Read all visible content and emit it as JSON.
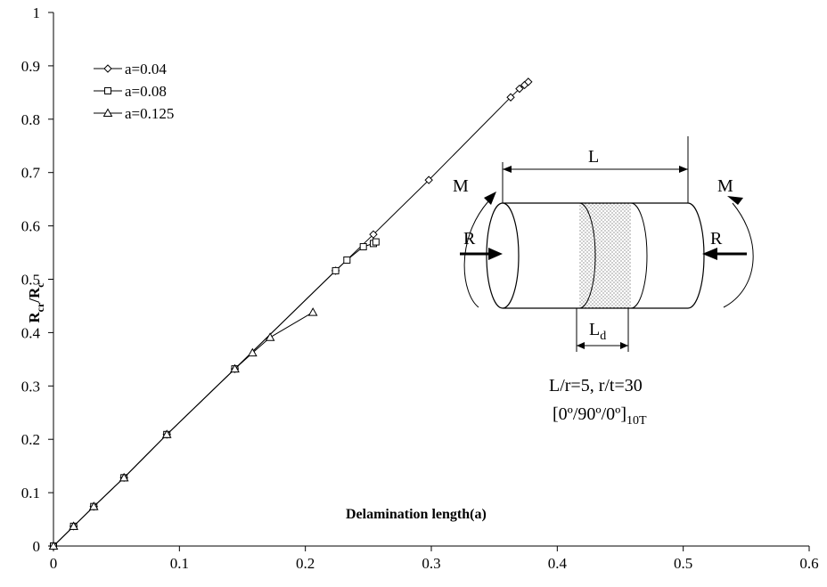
{
  "chart_data": {
    "type": "line",
    "title": "",
    "xlabel": "Delamination length(a)",
    "ylabel": {
      "main": "R",
      "sub1": "cr",
      "sep": "/R",
      "sub2": "c"
    },
    "xlim": [
      0,
      0.6
    ],
    "ylim": [
      0,
      1
    ],
    "xticks": [
      "0",
      "0.1",
      "0.2",
      "0.3",
      "0.4",
      "0.5",
      "0.6"
    ],
    "yticks": [
      "0",
      "0.1",
      "0.2",
      "0.3",
      "0.4",
      "0.5",
      "0.6",
      "0.7",
      "0.8",
      "0.9",
      "1"
    ],
    "grid": false,
    "legend_position": "top-left",
    "series": [
      {
        "name": "a=0.04",
        "marker": "diamond",
        "x": [
          0,
          0.016,
          0.032,
          0.056,
          0.09,
          0.144,
          0.224,
          0.254,
          0.298,
          0.363,
          0.37,
          0.374,
          0.377
        ],
        "y": [
          0,
          0.037,
          0.074,
          0.128,
          0.209,
          0.332,
          0.516,
          0.584,
          0.686,
          0.841,
          0.857,
          0.864,
          0.87
        ]
      },
      {
        "name": "a=0.08",
        "marker": "square",
        "x": [
          0,
          0.016,
          0.032,
          0.056,
          0.09,
          0.144,
          0.224,
          0.233,
          0.246,
          0.254,
          0.256
        ],
        "y": [
          0,
          0.037,
          0.074,
          0.128,
          0.209,
          0.332,
          0.516,
          0.536,
          0.561,
          0.567,
          0.57
        ]
      },
      {
        "name": "a=0.125",
        "marker": "triangle",
        "x": [
          0,
          0.016,
          0.032,
          0.056,
          0.09,
          0.144,
          0.158,
          0.172,
          0.206
        ],
        "y": [
          0,
          0.037,
          0.074,
          0.128,
          0.209,
          0.332,
          0.362,
          0.391,
          0.438
        ]
      }
    ],
    "annotations": {
      "L": "L",
      "M_left": "M",
      "M_right": "M",
      "R_left": "R",
      "R_right": "R",
      "Ld_main": "L",
      "Ld_sub": "d",
      "params_line1": "L/r=5, r/t=30",
      "layup_main": "[0º/90º/0º]",
      "layup_sub": "10T"
    }
  }
}
